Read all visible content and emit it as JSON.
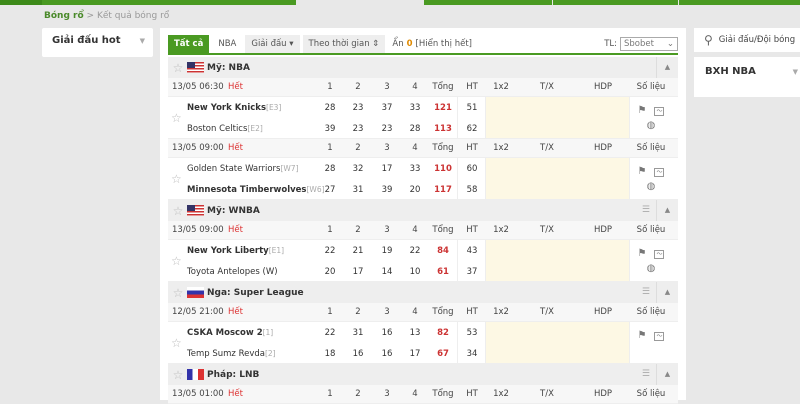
{
  "breadcrumb": {
    "home": "Bóng rổ",
    "sep": ">",
    "current": "Kết quả bóng rổ"
  },
  "left_panel": {
    "title": "Giải đấu hot"
  },
  "filters": {
    "all": "Tất cả",
    "nba": "NBA",
    "league": "Giải đấu ▾",
    "time": "Theo thời gian ⇕",
    "hidden_prefix": "Ẩn",
    "hidden_count": "0",
    "show_all": "[Hiển thị hết]",
    "tl_label": "TL:",
    "tl_value": "Sbobet"
  },
  "columns": {
    "q1": "1",
    "q2": "2",
    "q3": "3",
    "q4": "4",
    "total": "Tổng",
    "ht": "HT",
    "x12": "1x2",
    "tx": "T/X",
    "hdp": "HDP",
    "stats": "Số liệu"
  },
  "status_finished": "Hết",
  "leagues": [
    {
      "name": "Mỹ: NBA",
      "flag": "us",
      "matches": [
        {
          "time": "13/05 06:30",
          "home": {
            "name": "New York Knicks",
            "rank": "[E3]",
            "bold": true,
            "q": [
              "28",
              "23",
              "37",
              "33"
            ],
            "total": "121",
            "ht": "51"
          },
          "away": {
            "name": "Boston Celtics",
            "rank": "[E2]",
            "bold": false,
            "q": [
              "39",
              "23",
              "23",
              "28"
            ],
            "total": "113",
            "ht": "62"
          }
        },
        {
          "time": "13/05 09:00",
          "home": {
            "name": "Golden State Warriors",
            "rank": "[W7]",
            "bold": false,
            "q": [
              "28",
              "32",
              "17",
              "33"
            ],
            "total": "110",
            "ht": "60"
          },
          "away": {
            "name": "Minnesota Timberwolves",
            "rank": "[W6]",
            "bold": true,
            "q": [
              "27",
              "31",
              "39",
              "20"
            ],
            "total": "117",
            "ht": "58"
          }
        }
      ]
    },
    {
      "name": "Mỹ: WNBA",
      "flag": "us",
      "matches": [
        {
          "time": "13/05 09:00",
          "home": {
            "name": "New York Liberty",
            "rank": "[E1]",
            "bold": true,
            "q": [
              "22",
              "21",
              "19",
              "22"
            ],
            "total": "84",
            "ht": "43"
          },
          "away": {
            "name": "Toyota Antelopes (W)",
            "rank": "",
            "bold": false,
            "q": [
              "20",
              "17",
              "14",
              "10"
            ],
            "total": "61",
            "ht": "37"
          }
        }
      ]
    },
    {
      "name": "Nga: Super League",
      "flag": "ru",
      "matches": [
        {
          "time": "12/05 21:00",
          "home": {
            "name": "CSKA Moscow 2",
            "rank": "[1]",
            "bold": true,
            "q": [
              "22",
              "31",
              "16",
              "13"
            ],
            "total": "82",
            "ht": "53"
          },
          "away": {
            "name": "Temp Sumz Revda",
            "rank": "[2]",
            "bold": false,
            "q": [
              "18",
              "16",
              "16",
              "17"
            ],
            "total": "67",
            "ht": "34"
          }
        }
      ]
    },
    {
      "name": "Pháp: LNB",
      "flag": "fr",
      "matches": [
        {
          "time": "13/05 01:00"
        }
      ]
    }
  ],
  "search": {
    "placeholder": "Giải đấu/Đội bóng"
  },
  "standings": {
    "title": "BXH NBA"
  },
  "colors": {
    "accent": "#4a9a22",
    "score": "#cc3333",
    "odds_bg": "#fdf8e4"
  }
}
